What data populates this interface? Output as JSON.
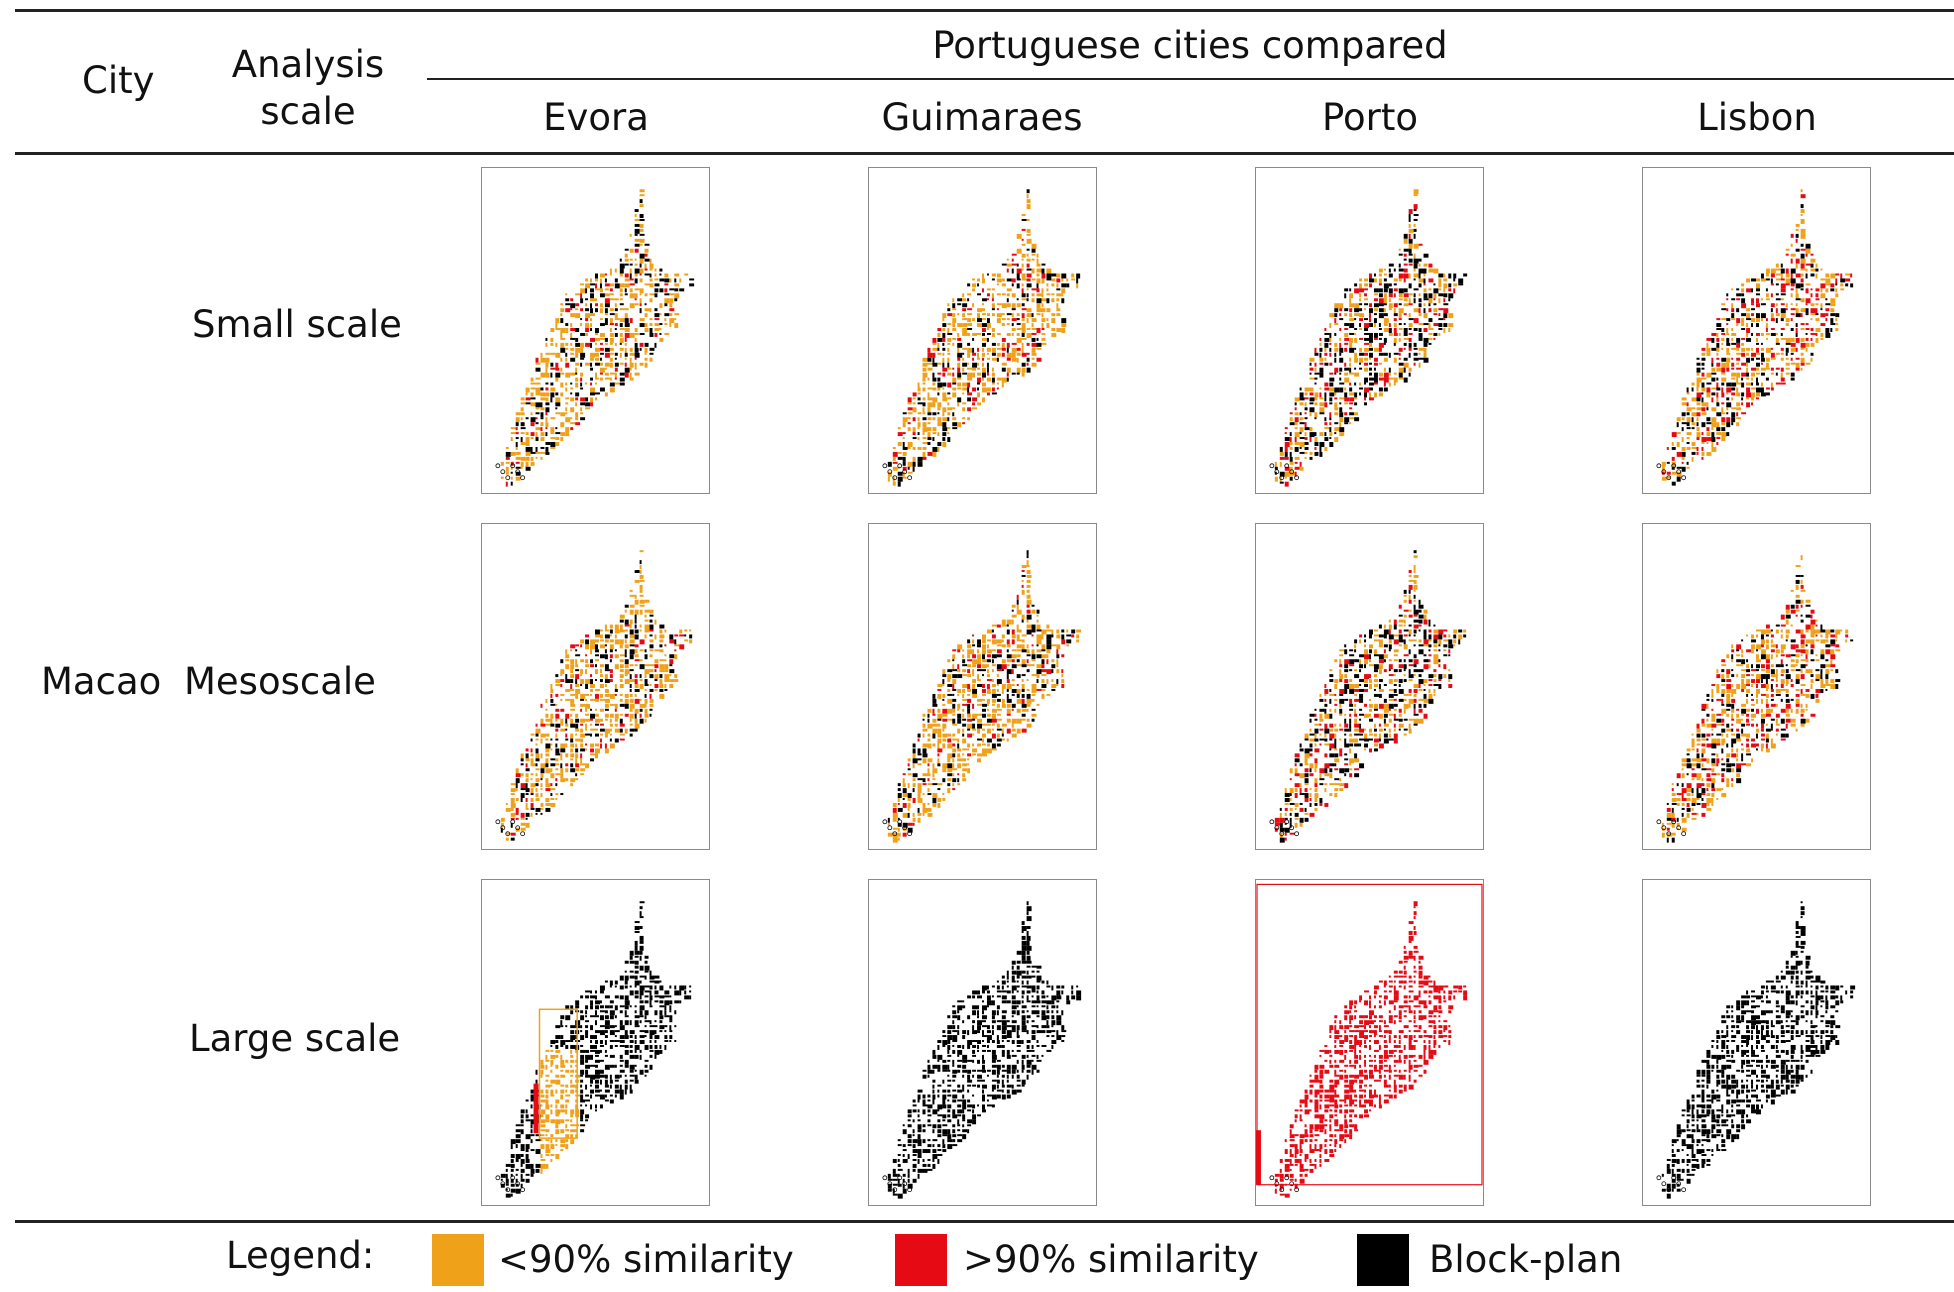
{
  "header": {
    "city_label": "City",
    "scale_label_line1": "Analysis",
    "scale_label_line2": "scale",
    "group_label": "Portuguese cities compared",
    "columns": [
      "Evora",
      "Guimaraes",
      "Porto",
      "Lisbon"
    ]
  },
  "row_group": {
    "city": "Macao"
  },
  "rows": [
    {
      "scale": "Small scale"
    },
    {
      "scale": "Mesoscale"
    },
    {
      "scale": "Large scale"
    }
  ],
  "maps": [
    [
      "mixed-mostly-low",
      "mixed-mostly-low",
      "mixed-red-block",
      "mixed-red-high"
    ],
    [
      "mixed-mostly-low",
      "mixed-mostly-low",
      "mixed-red-block",
      "mixed-red-high"
    ],
    [
      "block-with-low-strip",
      "block-plan",
      "all-high",
      "block-plan"
    ]
  ],
  "legend": {
    "title": "Legend:",
    "items": [
      {
        "label": "<90% similarity",
        "color": "#F0A11A"
      },
      {
        "label": ">90% similarity",
        "color": "#E50A14"
      },
      {
        "label": "Block-plan",
        "color": "#000000"
      }
    ]
  },
  "colors": {
    "low": "#F0A11A",
    "high": "#E50A14",
    "block": "#000000",
    "rule": "#222222"
  }
}
